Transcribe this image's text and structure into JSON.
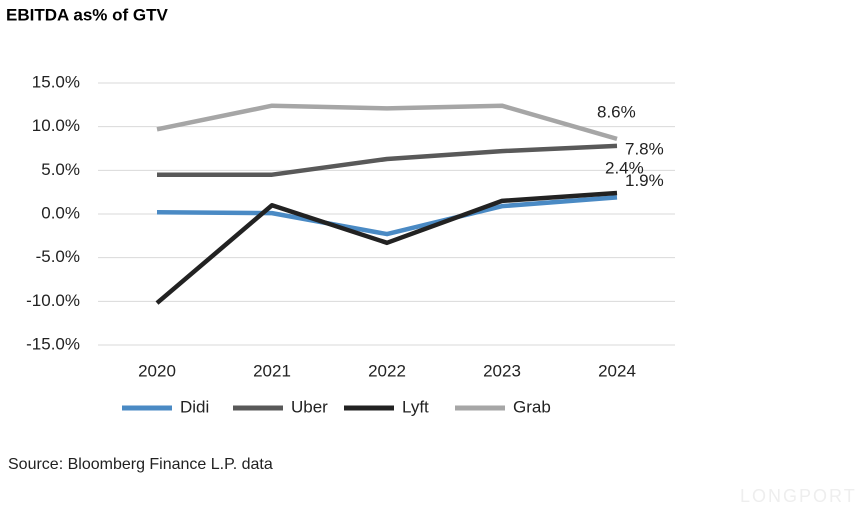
{
  "chart_data": {
    "type": "line",
    "title": "EBITDA as% of GTV",
    "categories": [
      "2020",
      "2021",
      "2022",
      "2023",
      "2024"
    ],
    "series": [
      {
        "name": "Didi",
        "color": "#4a8ac4",
        "values": [
          0.2,
          0.1,
          -2.3,
          0.9,
          1.9
        ],
        "value_labels": [
          null,
          null,
          null,
          null,
          "1.9%"
        ]
      },
      {
        "name": "Uber",
        "color": "#595959",
        "values": [
          4.5,
          4.5,
          6.3,
          7.2,
          7.8
        ],
        "value_labels": [
          null,
          null,
          null,
          null,
          "7.8%"
        ]
      },
      {
        "name": "Lyft",
        "color": "#222222",
        "values": [
          -10.2,
          1.0,
          -3.3,
          1.5,
          2.4
        ],
        "value_labels": [
          null,
          null,
          null,
          null,
          "2.4%"
        ]
      },
      {
        "name": "Grab",
        "color": "#a6a6a6",
        "values": [
          9.7,
          12.4,
          12.1,
          12.4,
          8.6
        ],
        "value_labels": [
          null,
          null,
          null,
          null,
          "8.6%"
        ]
      }
    ],
    "ylim": [
      -15,
      15
    ],
    "yticks": [
      {
        "value": -15,
        "label": "-15.0%"
      },
      {
        "value": -10,
        "label": "-10.0%"
      },
      {
        "value": -5,
        "label": "-5.0%"
      },
      {
        "value": 0,
        "label": "0.0%"
      },
      {
        "value": 5,
        "label": "5.0%"
      },
      {
        "value": 10,
        "label": "10.0%"
      },
      {
        "value": 15,
        "label": "15.0%"
      }
    ],
    "grid": true,
    "source": "Source: Bloomberg Finance L.P. data",
    "watermark": "LONGPORT"
  }
}
